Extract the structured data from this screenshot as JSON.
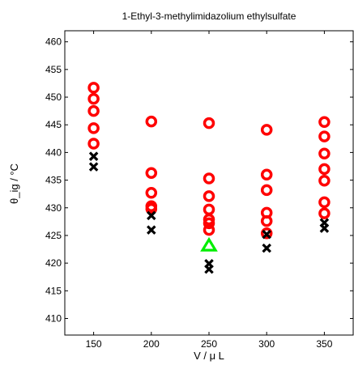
{
  "chart_data": {
    "type": "scatter",
    "title": "1-Ethyl-3-methylimidazolium ethylsulfate",
    "xlabel": "V / μ L",
    "ylabel": "θ_ig / °C",
    "xlim": [
      125,
      375
    ],
    "ylim": [
      407,
      462
    ],
    "xticks": [
      150,
      200,
      250,
      300,
      350
    ],
    "yticks": [
      410,
      415,
      420,
      425,
      430,
      435,
      440,
      445,
      450,
      455,
      460
    ],
    "grid": false,
    "series": [
      {
        "marker": "circle",
        "color": "#ff0000",
        "points": [
          [
            150,
            451.7
          ],
          [
            150,
            449.7
          ],
          [
            150,
            447.5
          ],
          [
            150,
            444.4
          ],
          [
            150,
            441.6
          ],
          [
            200,
            445.6
          ],
          [
            200,
            436.3
          ],
          [
            200,
            432.7
          ],
          [
            200,
            430.3
          ],
          [
            200,
            429.8
          ],
          [
            250,
            445.3
          ],
          [
            250,
            435.3
          ],
          [
            250,
            432.1
          ],
          [
            250,
            429.7
          ],
          [
            250,
            427.9
          ],
          [
            250,
            427.2
          ],
          [
            250,
            426.0
          ],
          [
            300,
            444.1
          ],
          [
            300,
            436.0
          ],
          [
            300,
            433.2
          ],
          [
            300,
            429.1
          ],
          [
            300,
            427.6
          ],
          [
            300,
            425.4
          ],
          [
            350,
            445.5
          ],
          [
            350,
            442.9
          ],
          [
            350,
            439.8
          ],
          [
            350,
            437.0
          ],
          [
            350,
            434.9
          ],
          [
            350,
            431.0
          ],
          [
            350,
            429.0
          ]
        ]
      },
      {
        "marker": "cross",
        "color": "#000000",
        "points": [
          [
            150,
            439.3
          ],
          [
            150,
            437.4
          ],
          [
            200,
            428.6
          ],
          [
            200,
            426.0
          ],
          [
            250,
            419.9
          ],
          [
            250,
            418.9
          ],
          [
            300,
            425.2
          ],
          [
            300,
            422.7
          ],
          [
            350,
            427.3
          ],
          [
            350,
            426.3
          ]
        ]
      },
      {
        "marker": "triangle",
        "color": "#00ee00",
        "points": [
          [
            250,
            423.1
          ]
        ]
      }
    ]
  }
}
